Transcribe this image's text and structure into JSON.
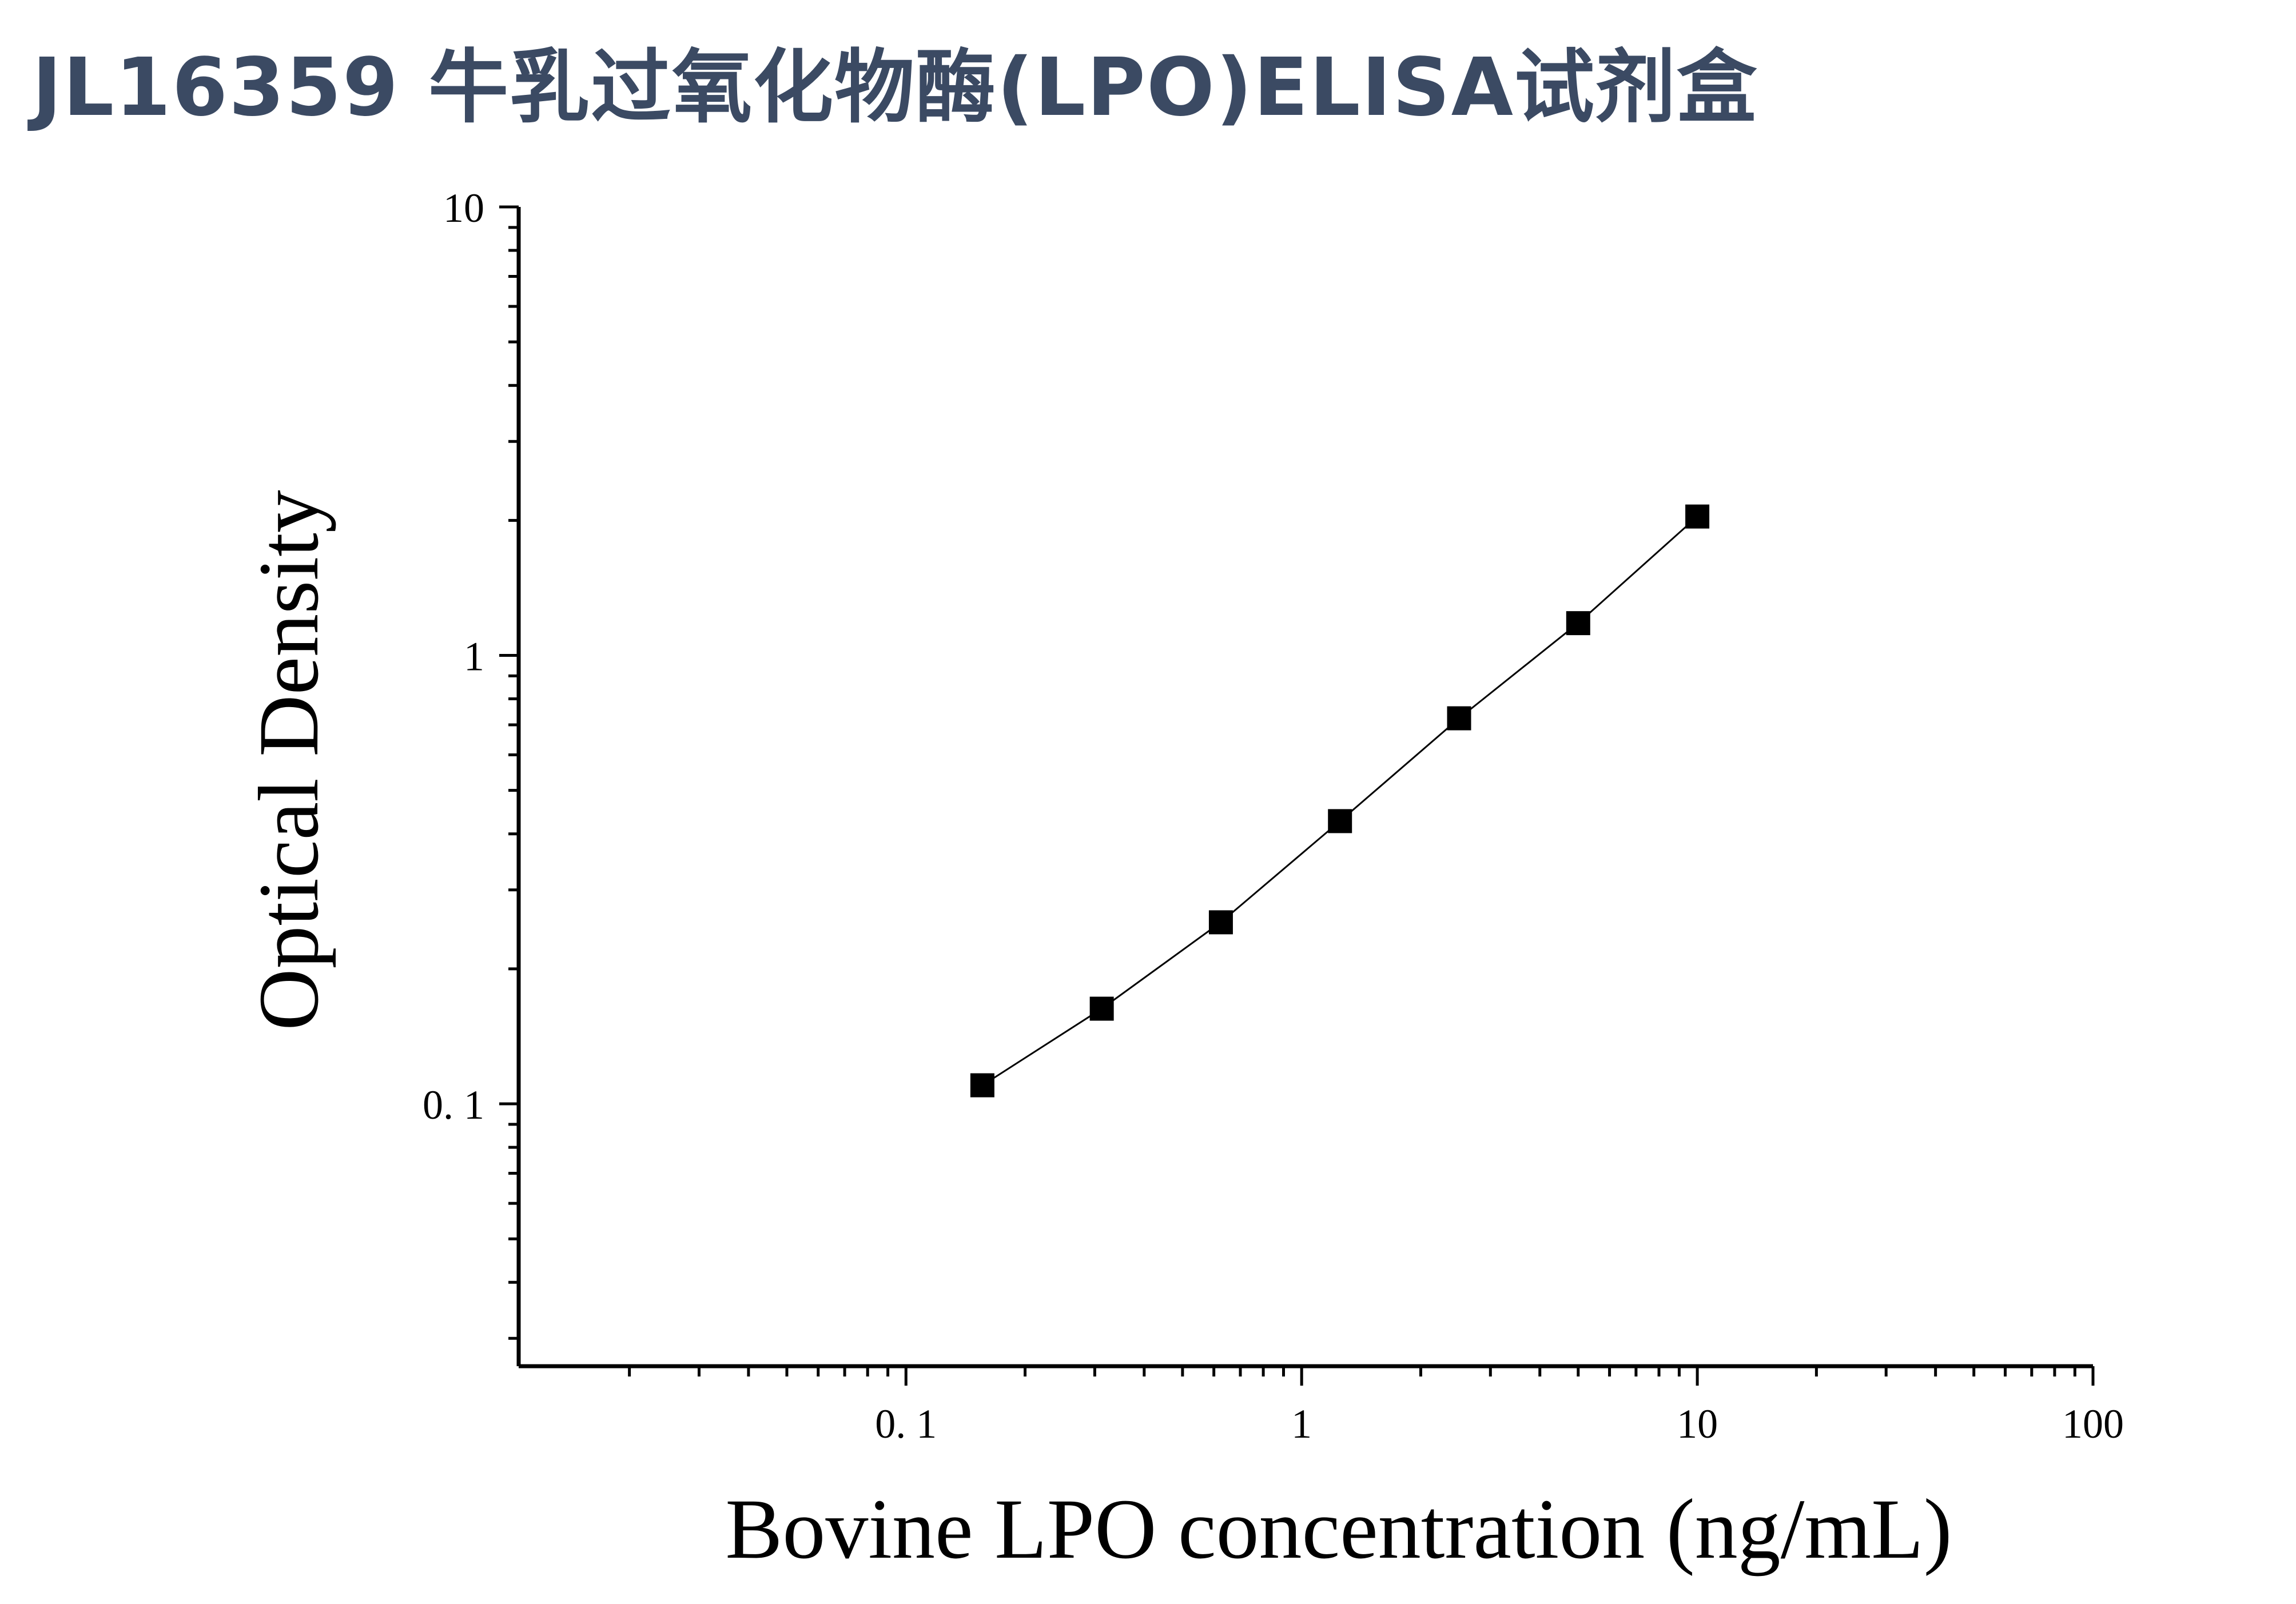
{
  "title": "JL16359 牛乳过氧化物酶(LPO)ELISA试剂盒",
  "chart_data": {
    "type": "line",
    "title": "",
    "xlabel": "Bovine LPO concentration (ng/mL)",
    "ylabel": "Optical Density",
    "xscale": "log",
    "yscale": "log",
    "xlim": [
      0.0105,
      100
    ],
    "ylim": [
      0.026,
      10
    ],
    "xticks": [
      {
        "value": 0.1,
        "label": "0. 1"
      },
      {
        "value": 1,
        "label": "1"
      },
      {
        "value": 10,
        "label": "10"
      },
      {
        "value": 100,
        "label": "100"
      }
    ],
    "yticks": [
      {
        "value": 0.1,
        "label": "0. 1"
      },
      {
        "value": 1,
        "label": "1"
      },
      {
        "value": 10,
        "label": "10"
      }
    ],
    "grid": false,
    "legend": false,
    "marker": "square",
    "colors": {
      "line": "#000000",
      "marker": "#000000",
      "axis": "#000000",
      "title": "#3b4a63"
    },
    "series": [
      {
        "x": [
          0.156,
          0.3125,
          0.625,
          1.25,
          2.5,
          5,
          10
        ],
        "y": [
          0.11,
          0.163,
          0.254,
          0.427,
          0.724,
          1.18,
          2.04
        ]
      }
    ]
  }
}
